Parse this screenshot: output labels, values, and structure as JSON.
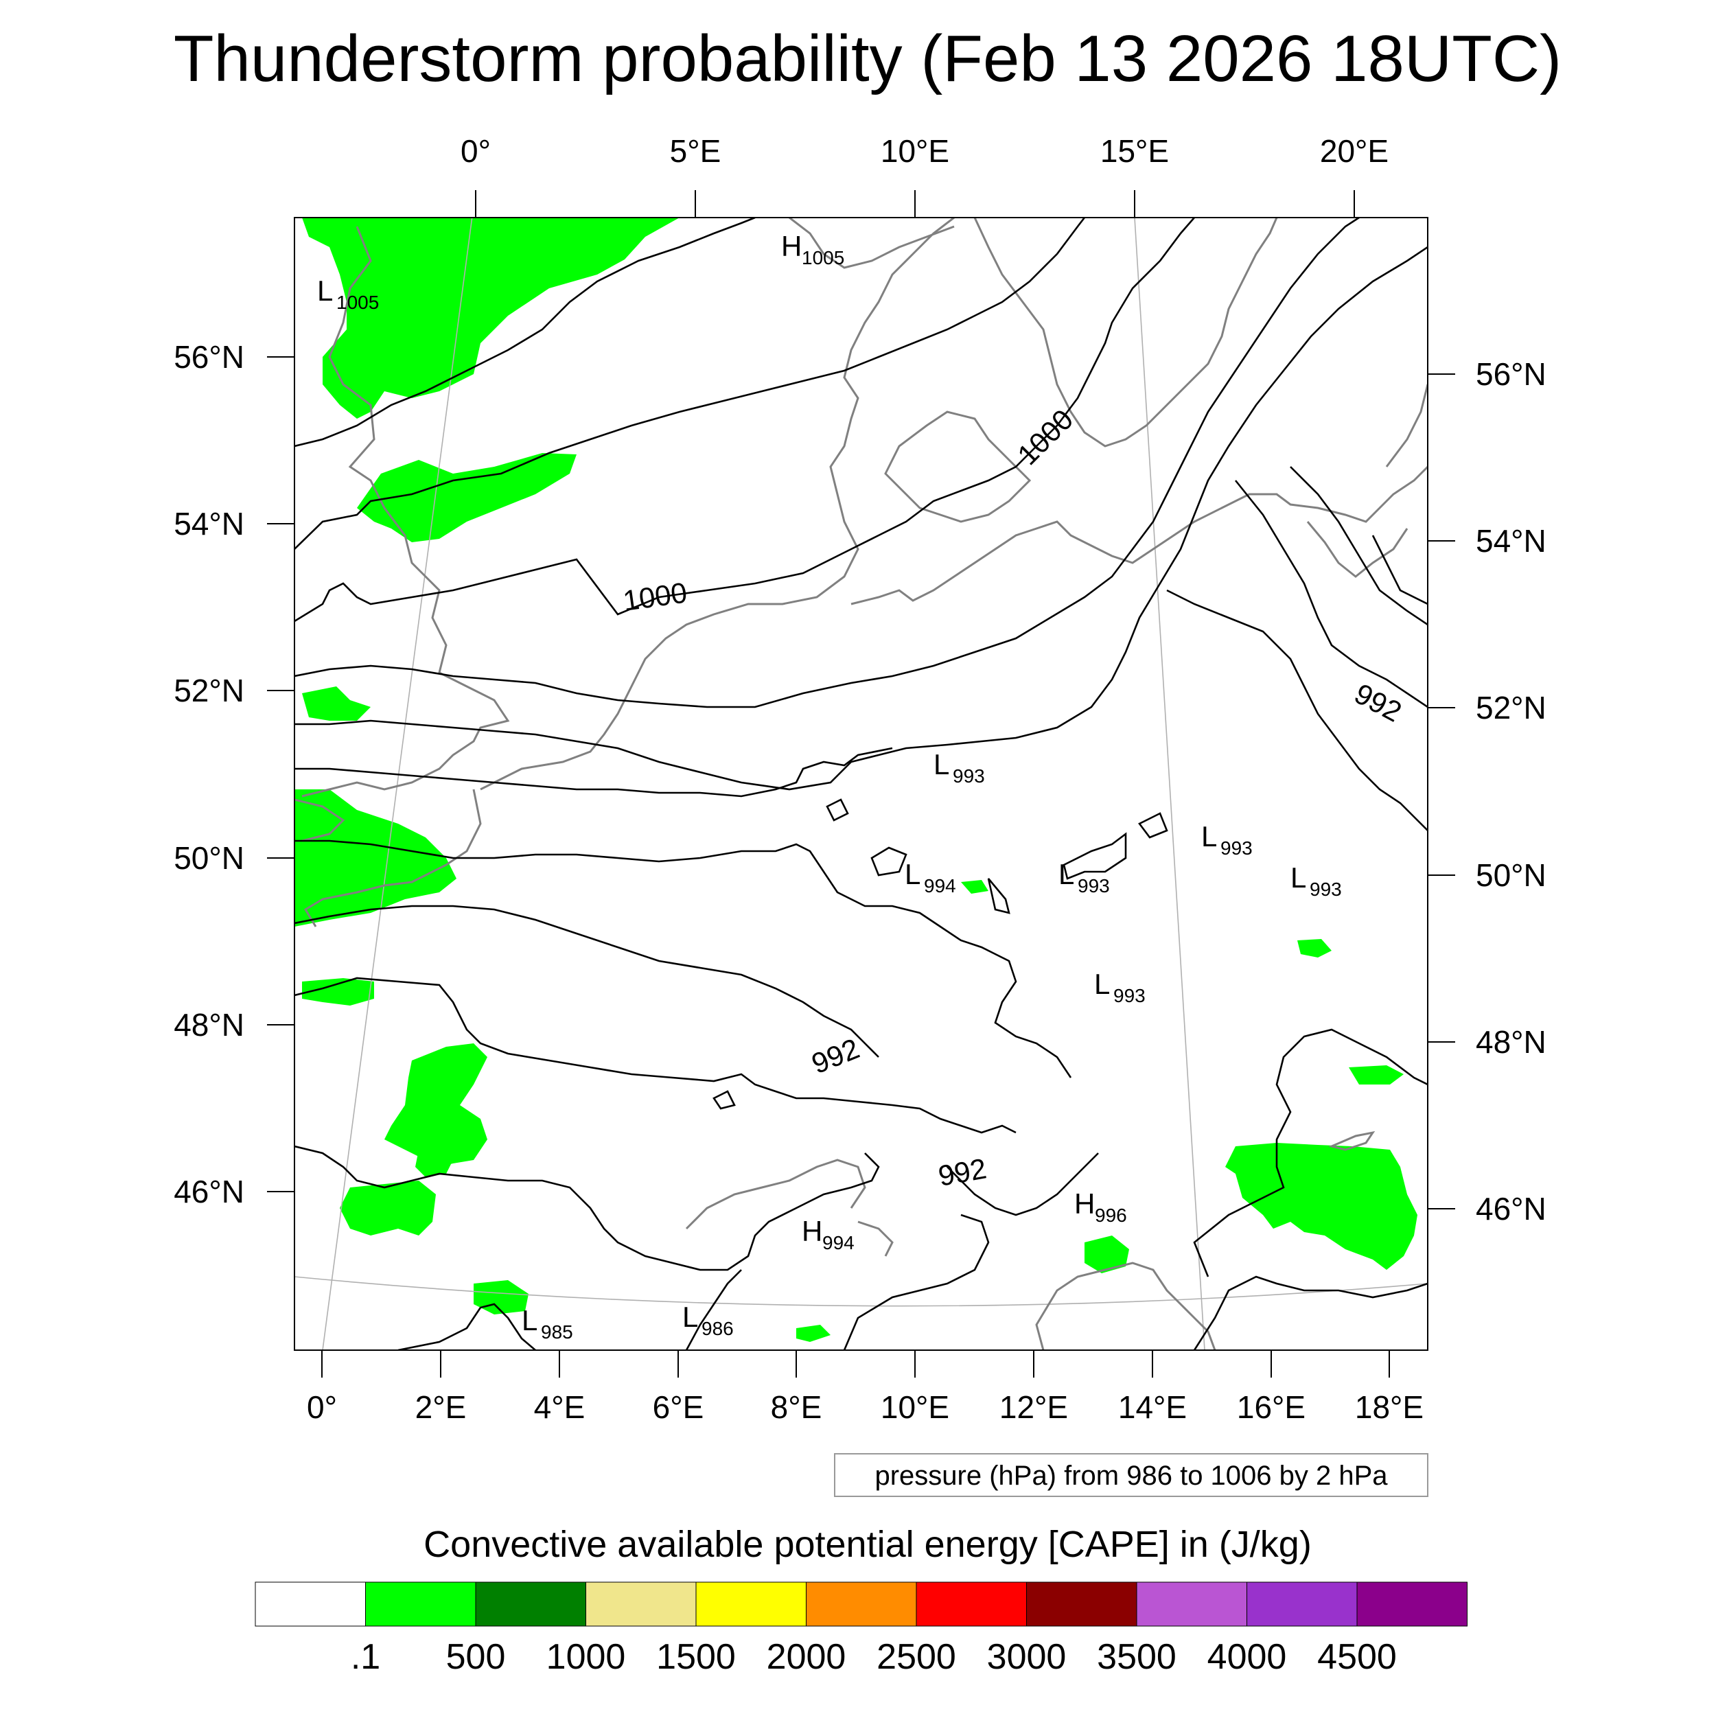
{
  "title": "Thunderstorm probability (Feb 13 2026 18UTC)",
  "map": {
    "top_longitude_labels": [
      "0°",
      "5°E",
      "10°E",
      "15°E",
      "20°E"
    ],
    "bottom_longitude_labels": [
      "0°",
      "2°E",
      "4°E",
      "6°E",
      "8°E",
      "10°E",
      "12°E",
      "14°E",
      "16°E",
      "18°E"
    ],
    "left_latitude_labels": [
      "56°N",
      "54°N",
      "52°N",
      "50°N",
      "48°N",
      "46°N"
    ],
    "right_latitude_labels": [
      "56°N",
      "54°N",
      "52°N",
      "50°N",
      "48°N",
      "46°N"
    ],
    "isobar_labels": [
      "1000",
      "1000",
      "992",
      "992",
      "992"
    ],
    "pressure_centers": [
      {
        "type": "H",
        "value": "1005"
      },
      {
        "type": "L",
        "value": "1005"
      },
      {
        "type": "L",
        "value": "993"
      },
      {
        "type": "L",
        "value": "993"
      },
      {
        "type": "L",
        "value": "993"
      },
      {
        "type": "L",
        "value": "994"
      },
      {
        "type": "L",
        "value": "993"
      },
      {
        "type": "L",
        "value": "993"
      },
      {
        "type": "H",
        "value": "994"
      },
      {
        "type": "H",
        "value": "996"
      },
      {
        "type": "L",
        "value": "985"
      },
      {
        "type": "L",
        "value": "986"
      }
    ],
    "contour_note": "pressure (hPa) from 986 to 1006 by 2 hPa",
    "coastline_color": "#808080",
    "isobar_color": "#000000"
  },
  "colorbar": {
    "title": "Convective available potential energy [CAPE] in (J/kg)",
    "colors": [
      "#ffffff",
      "#00ff00",
      "#008000",
      "#f0e68c",
      "#ffff00",
      "#ff8c00",
      "#ff0000",
      "#8b0000",
      "#ba55d3",
      "#9932cc",
      "#8b008b"
    ],
    "tick_labels": [
      ".1",
      "500",
      "1000",
      "1500",
      "2000",
      "2500",
      "3000",
      "3500",
      "4000",
      "4500"
    ]
  }
}
